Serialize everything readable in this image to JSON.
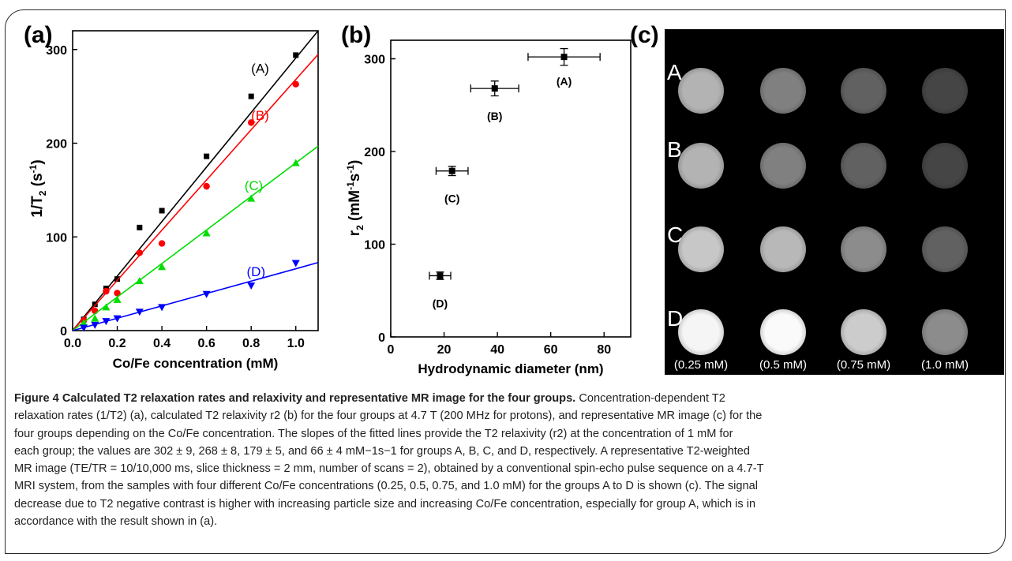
{
  "panel_labels": {
    "a": "(a)",
    "b": "(b)",
    "c": "(c)"
  },
  "chart_data": [
    {
      "id": "a",
      "type": "scatter",
      "xlabel": "Co/Fe concentration (mM)",
      "ylabel": "1/T2 (s-1)",
      "xlim": [
        0,
        1.1
      ],
      "ylim": [
        0,
        320
      ],
      "xticks": [
        "0.0",
        "0.2",
        "0.4",
        "0.6",
        "0.8",
        "1.0"
      ],
      "yticks": [
        "0",
        "100",
        "200",
        "300"
      ],
      "grid": false,
      "series": [
        {
          "name": "(A)",
          "color": "#000000",
          "marker": "square",
          "slope": 302,
          "x": [
            0.05,
            0.1,
            0.15,
            0.2,
            0.3,
            0.4,
            0.6,
            0.8,
            1.0
          ],
          "y": [
            12,
            28,
            45,
            55,
            110,
            128,
            186,
            250,
            294
          ]
        },
        {
          "name": "(B)",
          "color": "#ff0000",
          "marker": "circle",
          "slope": 268,
          "x": [
            0.05,
            0.1,
            0.15,
            0.2,
            0.3,
            0.4,
            0.6,
            0.8,
            1.0
          ],
          "y": [
            11,
            21,
            42,
            40,
            83,
            93,
            154,
            222,
            263
          ]
        },
        {
          "name": "(C)",
          "color": "#00dd00",
          "marker": "triangle-up",
          "slope": 179,
          "x": [
            0.05,
            0.1,
            0.15,
            0.2,
            0.3,
            0.4,
            0.6,
            0.8,
            1.0
          ],
          "y": [
            8,
            13,
            25,
            33,
            53,
            68,
            104,
            141,
            179
          ]
        },
        {
          "name": "(D)",
          "color": "#0000ff",
          "marker": "triangle-down",
          "slope": 66,
          "x": [
            0.05,
            0.1,
            0.15,
            0.2,
            0.3,
            0.4,
            0.6,
            0.8,
            1.0
          ],
          "y": [
            3,
            6,
            10,
            13,
            20,
            25,
            39,
            48,
            72
          ]
        }
      ]
    },
    {
      "id": "b",
      "type": "scatter",
      "xlabel": "Hydrodynamic diameter (nm)",
      "ylabel": "r2 (mM-1s-1)",
      "xlim": [
        0,
        90
      ],
      "ylim": [
        0,
        320
      ],
      "xticks": [
        "0",
        "20",
        "40",
        "60",
        "80"
      ],
      "yticks": [
        "0",
        "100",
        "200",
        "300"
      ],
      "grid": false,
      "points": [
        {
          "label": "(A)",
          "x": 65,
          "y": 302,
          "xerr": 13.5,
          "yerr": 9
        },
        {
          "label": "(B)",
          "x": 39,
          "y": 268,
          "xerr": 9,
          "yerr": 8
        },
        {
          "label": "(C)",
          "x": 23,
          "y": 179,
          "xerr": 6,
          "yerr": 5
        },
        {
          "label": "(D)",
          "x": 18.5,
          "y": 66,
          "xerr": 4,
          "yerr": 4
        }
      ]
    }
  ],
  "mr_image": {
    "rows": [
      "A",
      "B",
      "C",
      "D"
    ],
    "columns": [
      "(0.25 mM)",
      "(0.5 mM)",
      "(0.75 mM)",
      "(1.0 mM)"
    ],
    "intensity": [
      [
        0.7,
        0.5,
        0.38,
        0.27
      ],
      [
        0.7,
        0.5,
        0.38,
        0.27
      ],
      [
        0.78,
        0.72,
        0.55,
        0.38
      ],
      [
        0.96,
        0.98,
        0.8,
        0.55
      ]
    ]
  },
  "caption": {
    "title": "Figure 4 Calculated T2 relaxation rates and relaxivity and representative MR image for the four groups.",
    "line1": "Concentration-dependent T2",
    "line2": "relaxation rates (1/T2) (a), calculated T2 relaxivity r2 (b) for the four groups at 4.7 T (200 MHz for protons), and representative MR image (c) for the",
    "line3": "four groups depending on the Co/Fe concentration. The slopes of the fitted lines provide the T2 relaxivity (r2) at the concentration of 1 mM for",
    "line4": "each group; the values are 302 ± 9, 268 ± 8, 179 ± 5, and 66 ± 4 mM−1s−1 for groups A, B, C, and D, respectively. A representative T2-weighted",
    "line5": "MR image (TE/TR = 10/10,000 ms, slice thickness = 2 mm, number of scans = 2), obtained by a conventional spin-echo pulse sequence on a 4.7-T",
    "line6": "MRI system, from the samples with four different Co/Fe concentrations (0.25, 0.5, 0.75, and 1.0 mM) for the groups A to D is shown (c). The signal",
    "line7": "decrease due to T2 negative contrast is higher with increasing particle size and increasing Co/Fe concentration, especially for group A, which is in",
    "line8": "accordance with the result shown in (a)."
  }
}
